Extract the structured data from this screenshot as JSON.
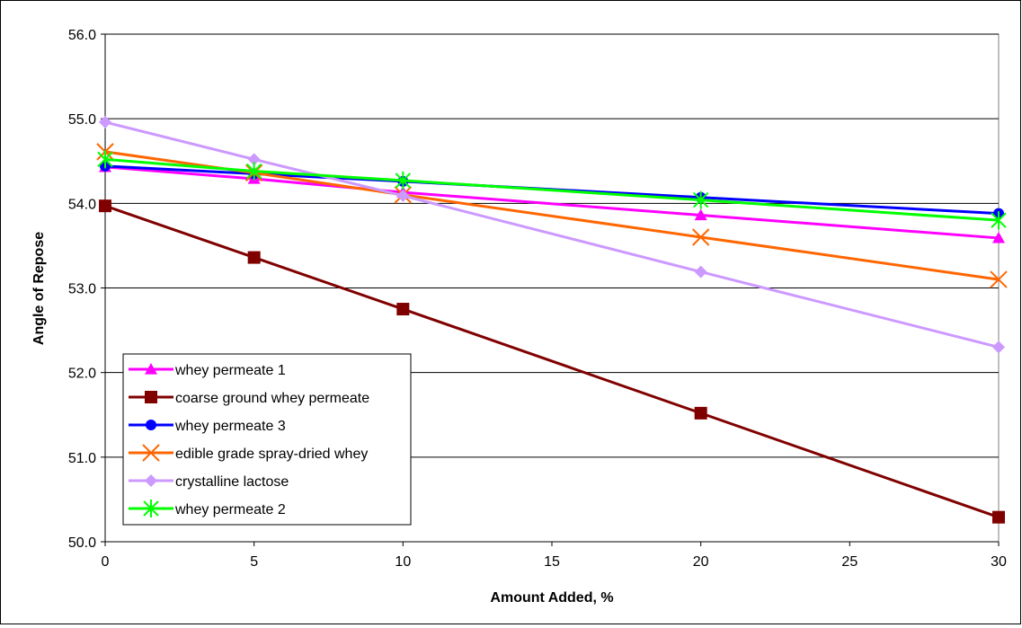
{
  "chart_data": {
    "type": "line",
    "title": "",
    "xlabel": "Amount Added, %",
    "ylabel": "Angle of Repose",
    "x": [
      0,
      5,
      10,
      20,
      30
    ],
    "xlim": [
      0,
      30
    ],
    "xticks": [
      0,
      5,
      10,
      15,
      20,
      25,
      30
    ],
    "xtick_labels": [
      "0",
      "5",
      "10",
      "15",
      "20",
      "25",
      "30"
    ],
    "ylim": [
      50.0,
      56.0
    ],
    "yticks": [
      50.0,
      51.0,
      52.0,
      53.0,
      54.0,
      55.0,
      56.0
    ],
    "ytick_labels": [
      "50.0",
      "51.0",
      "52.0",
      "53.0",
      "54.0",
      "55.0",
      "56.0"
    ],
    "grid": "horizontal",
    "legend_position": "bottom-left",
    "series": [
      {
        "name": "whey permeate 1",
        "color": "#FF00FF",
        "marker": "triangle",
        "values": [
          54.43,
          54.29,
          54.13,
          53.86,
          53.59
        ]
      },
      {
        "name": "coarse ground whey permeate",
        "color": "#800000",
        "marker": "square",
        "values": [
          53.97,
          53.36,
          52.75,
          51.52,
          50.29
        ]
      },
      {
        "name": "whey permeate 3",
        "color": "#0000FF",
        "marker": "circle",
        "values": [
          54.44,
          54.35,
          54.26,
          54.07,
          53.88
        ]
      },
      {
        "name": "edible grade spray-dried whey",
        "color": "#FF6600",
        "marker": "x",
        "values": [
          54.61,
          54.36,
          54.1,
          53.6,
          53.1
        ]
      },
      {
        "name": "crystalline lactose",
        "color": "#CC99FF",
        "marker": "diamond",
        "values": [
          54.96,
          54.52,
          54.09,
          53.19,
          52.3
        ]
      },
      {
        "name": "whey permeate 2",
        "color": "#00FF00",
        "marker": "asterisk",
        "values": [
          54.52,
          54.38,
          54.27,
          54.04,
          53.8
        ]
      }
    ]
  }
}
